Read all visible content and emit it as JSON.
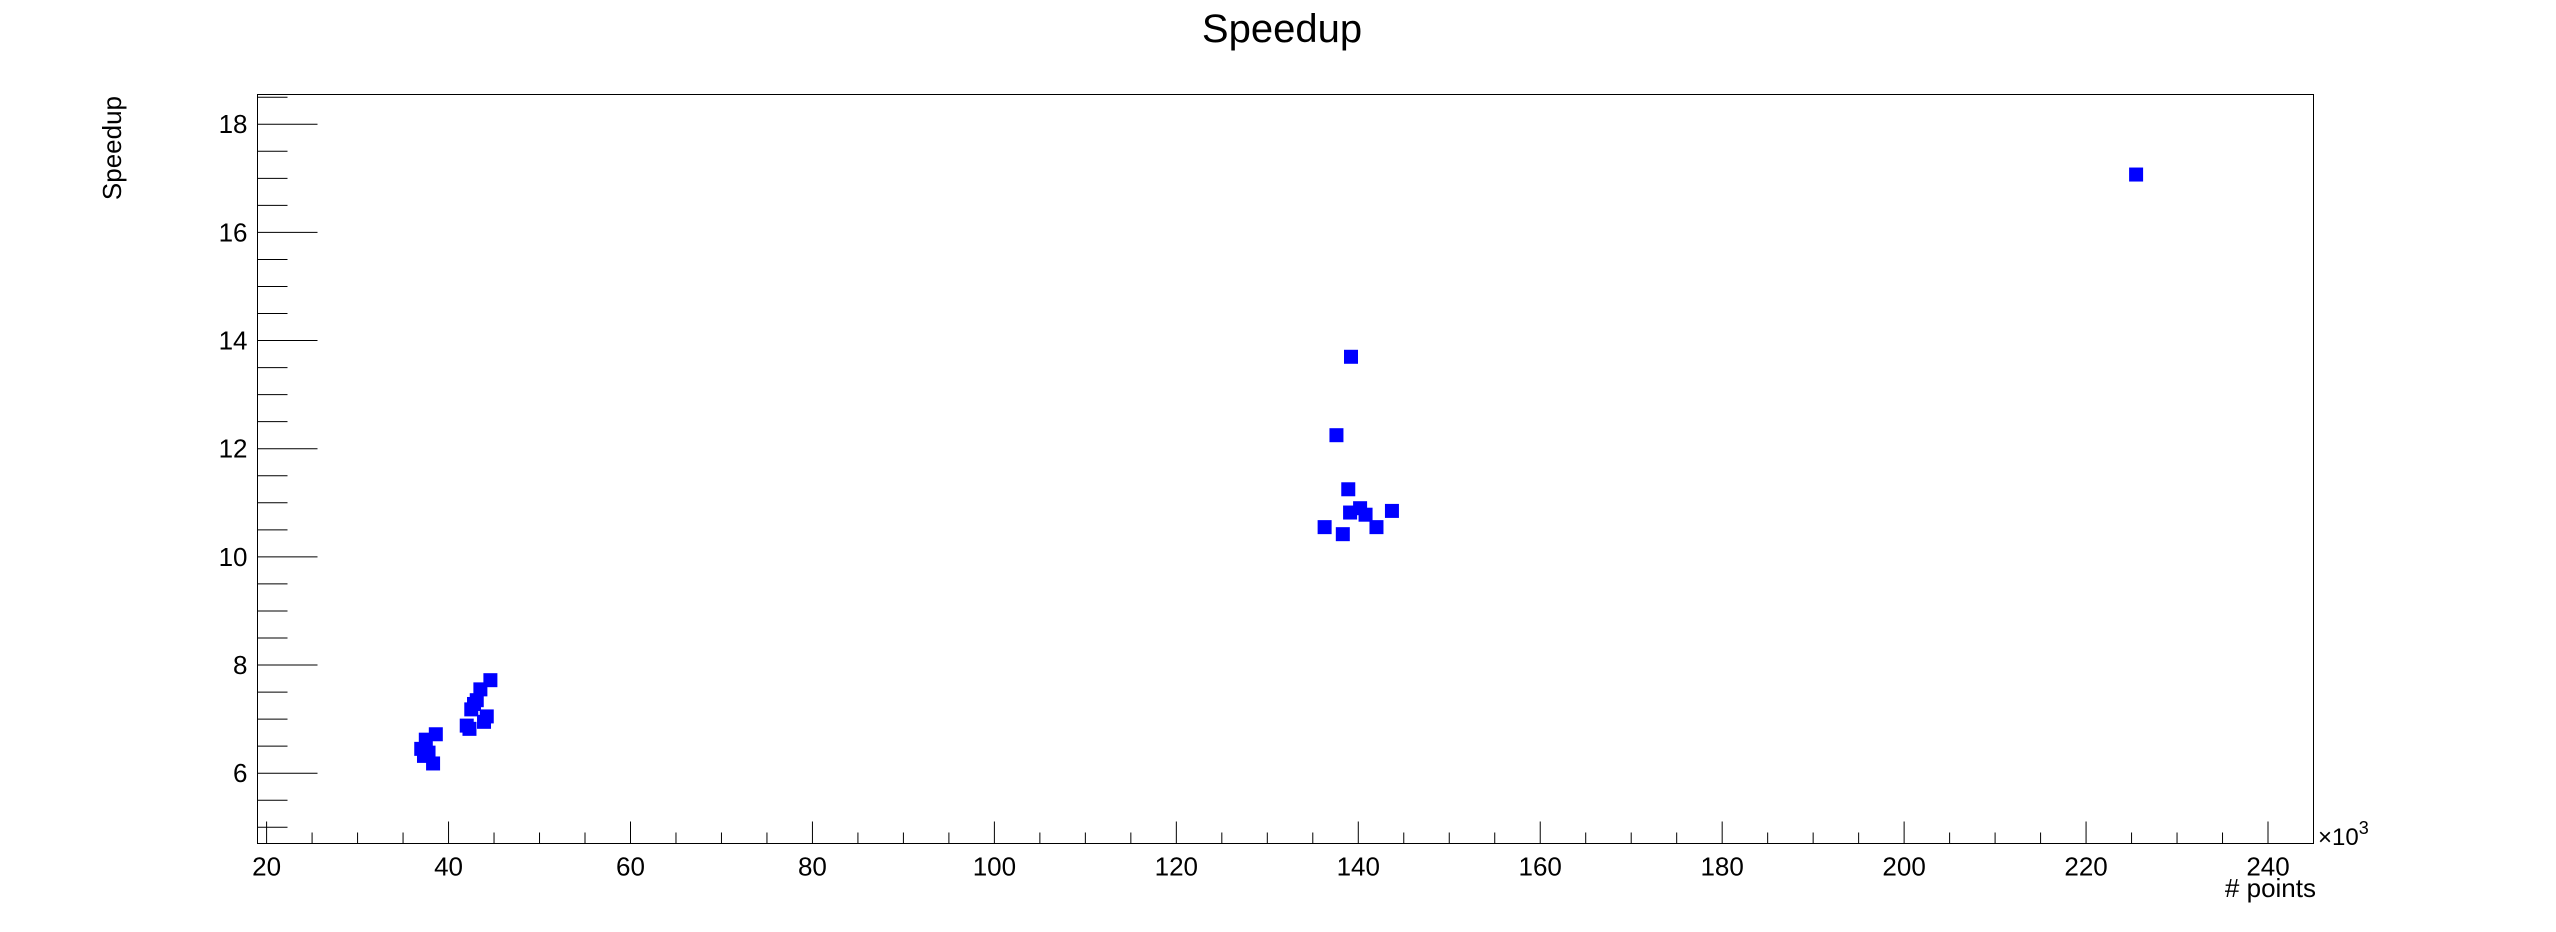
{
  "chart_data": {
    "type": "scatter",
    "title": "Speedup",
    "xlabel": "# points",
    "ylabel": "Speedup",
    "x_multiplier": "×10",
    "x_multiplier_exp": "3",
    "xlim": [
      19,
      245
    ],
    "ylim": [
      4.7,
      18.55
    ],
    "x_ticks": [
      20,
      40,
      60,
      80,
      100,
      120,
      140,
      160,
      180,
      200,
      220,
      240
    ],
    "y_ticks": [
      6,
      8,
      10,
      12,
      14,
      16,
      18
    ],
    "grid": false,
    "marker_color": "#0000ff",
    "x": [
      37.0,
      37.3,
      37.5,
      37.8,
      38.3,
      38.6,
      42.0,
      42.3,
      42.5,
      42.8,
      43.1,
      43.5,
      43.9,
      44.2,
      44.6,
      136.3,
      137.6,
      138.3,
      138.9,
      139.1,
      139.2,
      140.2,
      140.8,
      142.0,
      143.7,
      225.5
    ],
    "y": [
      6.45,
      6.32,
      6.62,
      6.38,
      6.18,
      6.72,
      6.88,
      6.82,
      7.18,
      7.28,
      7.35,
      7.55,
      6.95,
      7.05,
      7.72,
      10.55,
      12.25,
      10.42,
      11.25,
      10.82,
      13.7,
      10.9,
      10.78,
      10.55,
      10.85,
      17.07
    ]
  }
}
